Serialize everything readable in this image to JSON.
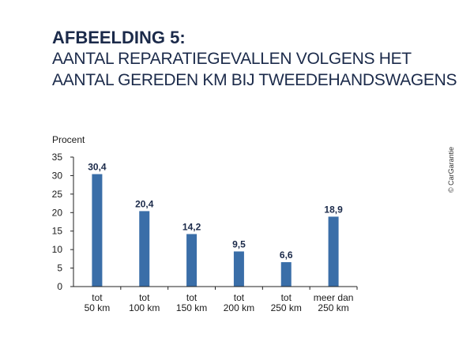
{
  "header": {
    "title": "AFBEELDING 5:",
    "subtitle_line1": "AANTAL REPARATIEGEVALLEN VOLGENS HET",
    "subtitle_line2": "AANTAL GEREDEN KM BIJ TWEEDEHANDSWAGENS"
  },
  "copyright": "© CarGarantie",
  "colors": {
    "bar": "#3a6ea8",
    "title": "#1b2a4a"
  },
  "chart_data": {
    "type": "bar",
    "ylabel": "Procent",
    "ylim": [
      0,
      35
    ],
    "yticks": [
      0,
      5,
      10,
      15,
      20,
      25,
      30,
      35
    ],
    "categories": [
      [
        "tot",
        "50 km"
      ],
      [
        "tot",
        "100 km"
      ],
      [
        "tot",
        "150 km"
      ],
      [
        "tot",
        "200 km"
      ],
      [
        "tot",
        "250 km"
      ],
      [
        "meer dan",
        "250 km"
      ]
    ],
    "values": [
      30.4,
      20.4,
      14.2,
      9.5,
      6.6,
      18.9
    ],
    "value_labels": [
      "30,4",
      "20,4",
      "14,2",
      "9,5",
      "6,6",
      "18,9"
    ],
    "grid": false
  }
}
